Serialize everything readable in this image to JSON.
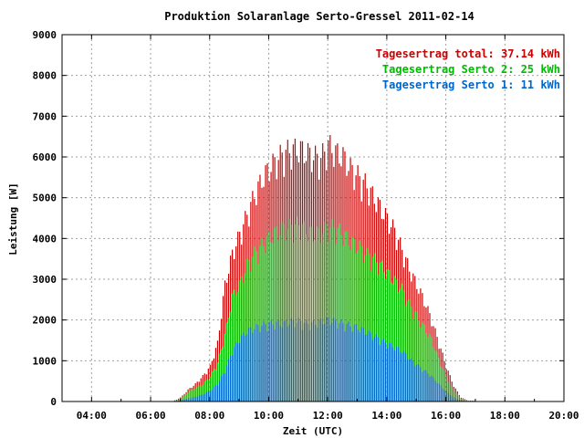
{
  "chart_data": {
    "type": "bar",
    "title": "Produktion Solaranlage Serto-Gressel 2011-02-14",
    "xlabel": "Zeit (UTC)",
    "ylabel": "Leistung [W]",
    "xlim": [
      3,
      20
    ],
    "ylim": [
      0,
      9000
    ],
    "x_ticks": [
      {
        "value": 4,
        "label": "04:00"
      },
      {
        "value": 6,
        "label": "06:00"
      },
      {
        "value": 8,
        "label": "08:00"
      },
      {
        "value": 10,
        "label": "10:00"
      },
      {
        "value": 12,
        "label": "12:00"
      },
      {
        "value": 14,
        "label": "14:00"
      },
      {
        "value": 16,
        "label": "16:00"
      },
      {
        "value": 18,
        "label": "18:00"
      },
      {
        "value": 20,
        "label": "20:00"
      }
    ],
    "y_ticks": [
      {
        "value": 0,
        "label": "0"
      },
      {
        "value": 1000,
        "label": "1000"
      },
      {
        "value": 2000,
        "label": "2000"
      },
      {
        "value": 3000,
        "label": "3000"
      },
      {
        "value": 4000,
        "label": "4000"
      },
      {
        "value": 5000,
        "label": "5000"
      },
      {
        "value": 6000,
        "label": "6000"
      },
      {
        "value": 7000,
        "label": "7000"
      },
      {
        "value": 8000,
        "label": "8000"
      },
      {
        "value": 9000,
        "label": "9000"
      }
    ],
    "grid": true,
    "legend_position": "top-right",
    "legend": [
      {
        "text": "Tagesertrag total: 37.14 kWh",
        "color": "#cc0000"
      },
      {
        "text": "Tagesertrag Serto 2: 25 kWh",
        "color": "#00bb00"
      },
      {
        "text": "Tagesertrag Serto 1: 11 kWh",
        "color": "#0066cc"
      }
    ],
    "x": [
      6.8,
      7.0,
      7.25,
      7.5,
      7.75,
      8.0,
      8.25,
      8.5,
      8.75,
      9.0,
      9.25,
      9.5,
      9.75,
      10.0,
      10.25,
      10.5,
      10.75,
      11.0,
      11.25,
      11.5,
      11.75,
      12.0,
      12.25,
      12.5,
      12.75,
      13.0,
      13.25,
      13.5,
      13.75,
      14.0,
      14.25,
      14.5,
      14.75,
      15.0,
      15.25,
      15.5,
      15.75,
      16.0,
      16.25,
      16.5,
      16.75
    ],
    "series": [
      {
        "name": "Tagesertrag total: 37.14 kWh",
        "color": "#cc0000",
        "values": [
          30,
          100,
          300,
          450,
          650,
          900,
          1500,
          3000,
          3800,
          4300,
          4800,
          5300,
          5700,
          6000,
          6200,
          6400,
          6450,
          6500,
          6400,
          6300,
          6250,
          6600,
          6400,
          6300,
          6000,
          5800,
          5600,
          5300,
          5000,
          4700,
          4400,
          3900,
          3400,
          3000,
          2600,
          2100,
          1500,
          900,
          400,
          100,
          20
        ]
      },
      {
        "name": "Tagesertrag Serto 2: 25 kWh",
        "color": "#00bb00",
        "values": [
          20,
          80,
          250,
          350,
          450,
          650,
          1000,
          1700,
          2700,
          3000,
          3500,
          3800,
          4000,
          4200,
          4350,
          4450,
          4500,
          4550,
          4400,
          4300,
          4350,
          4500,
          4450,
          4300,
          4100,
          4000,
          3800,
          3700,
          3500,
          3300,
          3100,
          2900,
          2500,
          2200,
          1900,
          1600,
          1100,
          650,
          300,
          80,
          10
        ]
      },
      {
        "name": "Tagesertrag Serto 1: 11 kWh",
        "color": "#0066cc",
        "values": [
          10,
          30,
          80,
          120,
          180,
          280,
          450,
          800,
          1300,
          1600,
          1800,
          1900,
          1950,
          2000,
          2000,
          2000,
          2050,
          2050,
          2000,
          2000,
          2050,
          2100,
          2050,
          2000,
          1950,
          1900,
          1800,
          1700,
          1600,
          1500,
          1400,
          1300,
          1100,
          950,
          800,
          650,
          450,
          250,
          100,
          30,
          5
        ]
      }
    ]
  }
}
